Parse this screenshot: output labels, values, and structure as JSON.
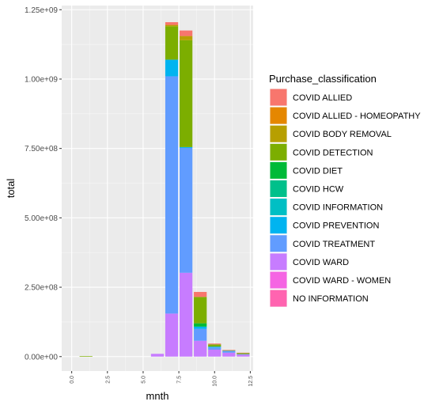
{
  "chart_data": {
    "type": "bar",
    "stacked": true,
    "xlabel": "mnth",
    "ylabel": "total",
    "xlim": [
      -0.7,
      12.7
    ],
    "ylim": [
      -52000000.0,
      1265000000.0
    ],
    "x_ticks": [
      {
        "value": 0,
        "label": "0.0"
      },
      {
        "value": 2.5,
        "label": "2.5"
      },
      {
        "value": 5,
        "label": "5.0"
      },
      {
        "value": 7.5,
        "label": "7.5"
      },
      {
        "value": 10,
        "label": "10.0"
      },
      {
        "value": 12.5,
        "label": "12.5"
      }
    ],
    "y_ticks": [
      {
        "value": 0,
        "label": "0.00e+00"
      },
      {
        "value": 250000000,
        "label": "2.50e+08"
      },
      {
        "value": 500000000,
        "label": "5.00e+08"
      },
      {
        "value": 750000000,
        "label": "7.50e+08"
      },
      {
        "value": 1000000000,
        "label": "1.00e+09"
      },
      {
        "value": 1250000000,
        "label": "1.25e+09"
      }
    ],
    "grid": true,
    "legend_position": "right",
    "legend_title": "Purchase_classification",
    "series": [
      {
        "name": "COVID ALLIED",
        "color": "#F8766D"
      },
      {
        "name": "COVID ALLIED - HOMEOPATHY",
        "color": "#E58700"
      },
      {
        "name": "COVID BODY REMOVAL",
        "color": "#B79F00"
      },
      {
        "name": "COVID DETECTION",
        "color": "#7CAE00"
      },
      {
        "name": "COVID DIET",
        "color": "#00BA38"
      },
      {
        "name": "COVID HCW",
        "color": "#00C08B"
      },
      {
        "name": "COVID INFORMATION",
        "color": "#00BFC4"
      },
      {
        "name": "COVID PREVENTION",
        "color": "#00B4F0"
      },
      {
        "name": "COVID TREATMENT",
        "color": "#619CFF"
      },
      {
        "name": "COVID WARD",
        "color": "#C77CFF"
      },
      {
        "name": "COVID WARD - WOMEN",
        "color": "#F564E3"
      },
      {
        "name": "NO INFORMATION",
        "color": "#FF64B0"
      }
    ],
    "bars": [
      {
        "x": 1,
        "segments": [
          {
            "series": "COVID DETECTION",
            "value": 2000000
          }
        ]
      },
      {
        "x": 6,
        "segments": [
          {
            "series": "COVID WARD",
            "value": 10000000
          }
        ]
      },
      {
        "x": 7,
        "segments": [
          {
            "series": "COVID WARD",
            "value": 155000000
          },
          {
            "series": "COVID TREATMENT",
            "value": 855000000
          },
          {
            "series": "COVID PREVENTION",
            "value": 60000000
          },
          {
            "series": "COVID DETECTION",
            "value": 120000000
          },
          {
            "series": "COVID BODY REMOVAL",
            "value": 5000000
          },
          {
            "series": "COVID ALLIED",
            "value": 10000000
          }
        ]
      },
      {
        "x": 8,
        "segments": [
          {
            "series": "COVID WARD",
            "value": 302000000
          },
          {
            "series": "COVID TREATMENT",
            "value": 450000000
          },
          {
            "series": "COVID PREVENTION",
            "value": 3000000
          },
          {
            "series": "COVID DETECTION",
            "value": 385000000
          },
          {
            "series": "COVID BODY REMOVAL",
            "value": 15000000
          },
          {
            "series": "COVID ALLIED",
            "value": 20000000
          }
        ]
      },
      {
        "x": 9,
        "segments": [
          {
            "series": "COVID WARD",
            "value": 57000000
          },
          {
            "series": "COVID TREATMENT",
            "value": 43000000
          },
          {
            "series": "COVID PREVENTION",
            "value": 8000000
          },
          {
            "series": "COVID DIET",
            "value": 12000000
          },
          {
            "series": "COVID DETECTION",
            "value": 95000000
          },
          {
            "series": "COVID ALLIED",
            "value": 18000000
          }
        ]
      },
      {
        "x": 10,
        "segments": [
          {
            "series": "COVID WARD",
            "value": 25000000
          },
          {
            "series": "COVID TREATMENT",
            "value": 8000000
          },
          {
            "series": "COVID PREVENTION",
            "value": 3000000
          },
          {
            "series": "COVID DETECTION",
            "value": 8000000
          },
          {
            "series": "COVID ALLIED",
            "value": 3000000
          }
        ]
      },
      {
        "x": 11,
        "segments": [
          {
            "series": "COVID WARD",
            "value": 14000000
          },
          {
            "series": "COVID TREATMENT",
            "value": 7000000
          },
          {
            "series": "COVID DETECTION",
            "value": 2000000
          },
          {
            "series": "COVID ALLIED",
            "value": 1000000
          }
        ]
      },
      {
        "x": 12,
        "segments": [
          {
            "series": "COVID WARD",
            "value": 7000000
          },
          {
            "series": "COVID TREATMENT",
            "value": 2000000
          },
          {
            "series": "COVID DETECTION",
            "value": 4000000
          },
          {
            "series": "COVID ALLIED",
            "value": 1000000
          }
        ]
      }
    ]
  }
}
